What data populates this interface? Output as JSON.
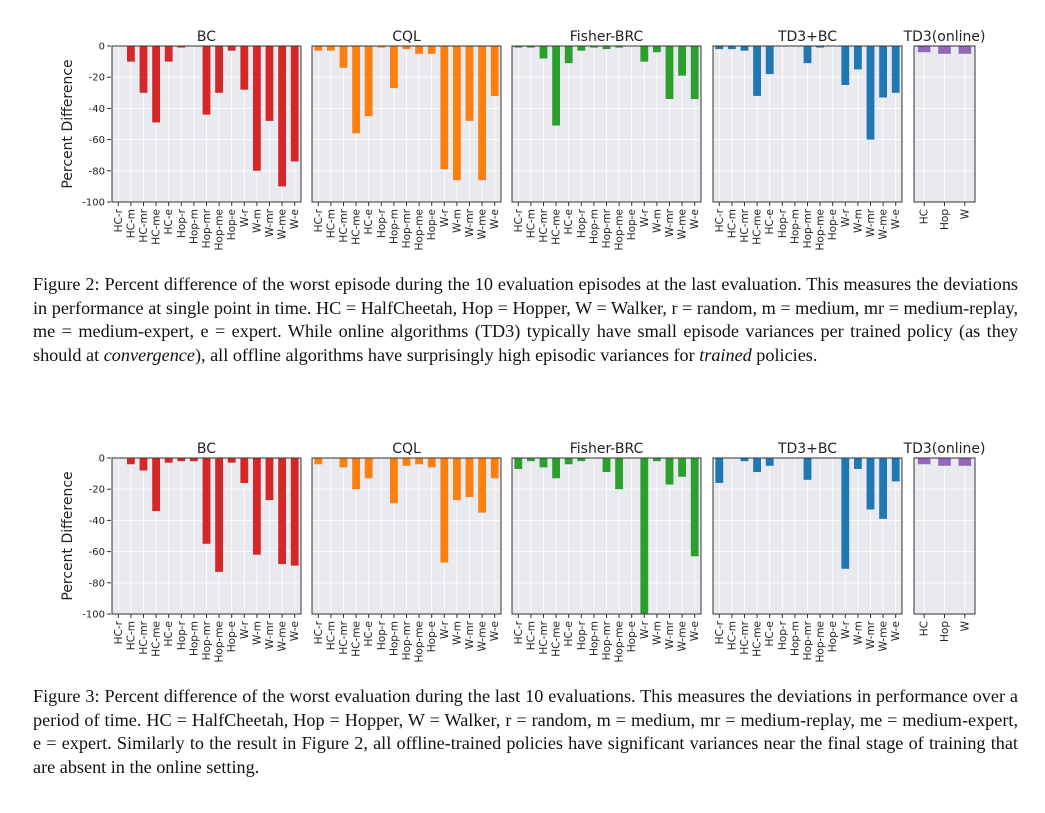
{
  "figures": [
    {
      "caption_parts": [
        {
          "text": "Figure 2: Percent difference of the worst episode during the 10 evaluation episodes at the last evaluation. This measures the deviations in performance at single point in time. HC = HalfCheetah, Hop = Hopper, W = Walker, r = random, m = medium, mr = medium-replay, me = medium-expert, e = expert. While online algorithms (TD3) typically have small episode variances per trained policy (as they should at "
        },
        {
          "text": "convergence",
          "italic": true
        },
        {
          "text": "), all offline algorithms have surprisingly high episodic variances for "
        },
        {
          "text": "trained",
          "italic": true
        },
        {
          "text": " policies."
        }
      ]
    },
    {
      "caption_parts": [
        {
          "text": "Figure 3: Percent difference of the worst evaluation during the last 10 evaluations. This measures the deviations in performance over a period of time. HC = HalfCheetah, Hop = Hopper, W = Walker, r = random, m = medium, mr = medium-replay, me = medium-expert, e = expert. Similarly to the result in Figure 2, all offline-trained policies have significant variances near the final stage of training that are absent in the online setting."
        }
      ]
    }
  ],
  "chart_data": [
    {
      "type": "bar",
      "figure": "Figure 2",
      "ylabel": "Percent Difference",
      "ylim": [
        -100,
        0
      ],
      "yticks": [
        0,
        -20,
        -40,
        -60,
        -80,
        -100
      ],
      "grid": true,
      "background": "#e9e9f0",
      "panels": [
        {
          "title": "BC",
          "color": "#d62728",
          "categories": [
            "HC-r",
            "HC-m",
            "HC-mr",
            "HC-me",
            "HC-e",
            "Hop-r",
            "Hop-m",
            "Hop-mr",
            "Hop-me",
            "Hop-e",
            "W-r",
            "W-m",
            "W-mr",
            "W-me",
            "W-e"
          ],
          "values": [
            0,
            -10,
            -30,
            -49,
            -10,
            -1,
            0,
            -44,
            -30,
            -3,
            -28,
            -80,
            -48,
            -90,
            -74
          ]
        },
        {
          "title": "CQL",
          "color": "#ff7f0e",
          "categories": [
            "HC-r",
            "HC-m",
            "HC-mr",
            "HC-me",
            "HC-e",
            "Hop-r",
            "Hop-m",
            "Hop-mr",
            "Hop-me",
            "Hop-e",
            "W-r",
            "W-m",
            "W-mr",
            "W-me",
            "W-e"
          ],
          "values": [
            -3,
            -3,
            -14,
            -56,
            -45,
            -1,
            -27,
            -2,
            -5,
            -5,
            -79,
            -86,
            -48,
            -86,
            -32
          ]
        },
        {
          "title": "Fisher-BRC",
          "color": "#2ca02c",
          "categories": [
            "HC-r",
            "HC-m",
            "HC-mr",
            "HC-me",
            "HC-e",
            "Hop-r",
            "Hop-m",
            "Hop-mr",
            "Hop-me",
            "Hop-e",
            "W-r",
            "W-m",
            "W-mr",
            "W-me",
            "W-e"
          ],
          "values": [
            -1,
            -1,
            -8,
            -51,
            -11,
            -3,
            -1,
            -2,
            -1,
            0,
            -10,
            -4,
            -34,
            -19,
            -34
          ]
        },
        {
          "title": "TD3+BC",
          "color": "#1f77b4",
          "categories": [
            "HC-r",
            "HC-m",
            "HC-mr",
            "HC-me",
            "HC-e",
            "Hop-r",
            "Hop-m",
            "Hop-mr",
            "Hop-me",
            "Hop-e",
            "W-r",
            "W-m",
            "W-mr",
            "W-me",
            "W-e"
          ],
          "values": [
            -2,
            -2,
            -3,
            -32,
            -18,
            0,
            0,
            -11,
            -1,
            0,
            -25,
            -15,
            -60,
            -33,
            -30
          ]
        },
        {
          "title": "TD3(online)",
          "color": "#9467bd",
          "categories": [
            "HC",
            "Hop",
            "W"
          ],
          "values": [
            -4,
            -5,
            -5
          ]
        }
      ]
    },
    {
      "type": "bar",
      "figure": "Figure 3",
      "ylabel": "Percent Difference",
      "ylim": [
        -100,
        0
      ],
      "yticks": [
        0,
        -20,
        -40,
        -60,
        -80,
        -100
      ],
      "grid": true,
      "background": "#e9e9f0",
      "panels": [
        {
          "title": "BC",
          "color": "#d62728",
          "categories": [
            "HC-r",
            "HC-m",
            "HC-mr",
            "HC-me",
            "HC-e",
            "Hop-r",
            "Hop-m",
            "Hop-mr",
            "Hop-me",
            "Hop-e",
            "W-r",
            "W-m",
            "W-mr",
            "W-me",
            "W-e"
          ],
          "values": [
            0,
            -4,
            -8,
            -34,
            -3,
            -2,
            -2,
            -55,
            -73,
            -3,
            -16,
            -62,
            -27,
            -68,
            -69
          ]
        },
        {
          "title": "CQL",
          "color": "#ff7f0e",
          "categories": [
            "HC-r",
            "HC-m",
            "HC-mr",
            "HC-me",
            "HC-e",
            "Hop-r",
            "Hop-m",
            "Hop-mr",
            "Hop-me",
            "Hop-e",
            "W-r",
            "W-m",
            "W-mr",
            "W-me",
            "W-e"
          ],
          "values": [
            -4,
            0,
            -6,
            -20,
            -13,
            0,
            -29,
            -5,
            -4,
            -6,
            -67,
            -27,
            -25,
            -35,
            -13
          ]
        },
        {
          "title": "Fisher-BRC",
          "color": "#2ca02c",
          "categories": [
            "HC-r",
            "HC-m",
            "HC-mr",
            "HC-me",
            "HC-e",
            "Hop-r",
            "Hop-m",
            "Hop-mr",
            "Hop-me",
            "Hop-e",
            "W-r",
            "W-m",
            "W-mr",
            "W-me",
            "W-e"
          ],
          "values": [
            -7,
            -2,
            -6,
            -13,
            -4,
            -2,
            0,
            -9,
            -20,
            0,
            -100,
            -2,
            -17,
            -12,
            -63
          ]
        },
        {
          "title": "TD3+BC",
          "color": "#1f77b4",
          "categories": [
            "HC-r",
            "HC-m",
            "HC-mr",
            "HC-me",
            "HC-e",
            "Hop-r",
            "Hop-m",
            "Hop-mr",
            "Hop-me",
            "Hop-e",
            "W-r",
            "W-m",
            "W-mr",
            "W-me",
            "W-e"
          ],
          "values": [
            -16,
            0,
            -2,
            -9,
            -5,
            0,
            0,
            -14,
            0,
            0,
            -71,
            -7,
            -33,
            -39,
            -15
          ]
        },
        {
          "title": "TD3(online)",
          "color": "#9467bd",
          "categories": [
            "HC",
            "Hop",
            "W"
          ],
          "values": [
            -4,
            -5,
            -5
          ]
        }
      ]
    }
  ]
}
